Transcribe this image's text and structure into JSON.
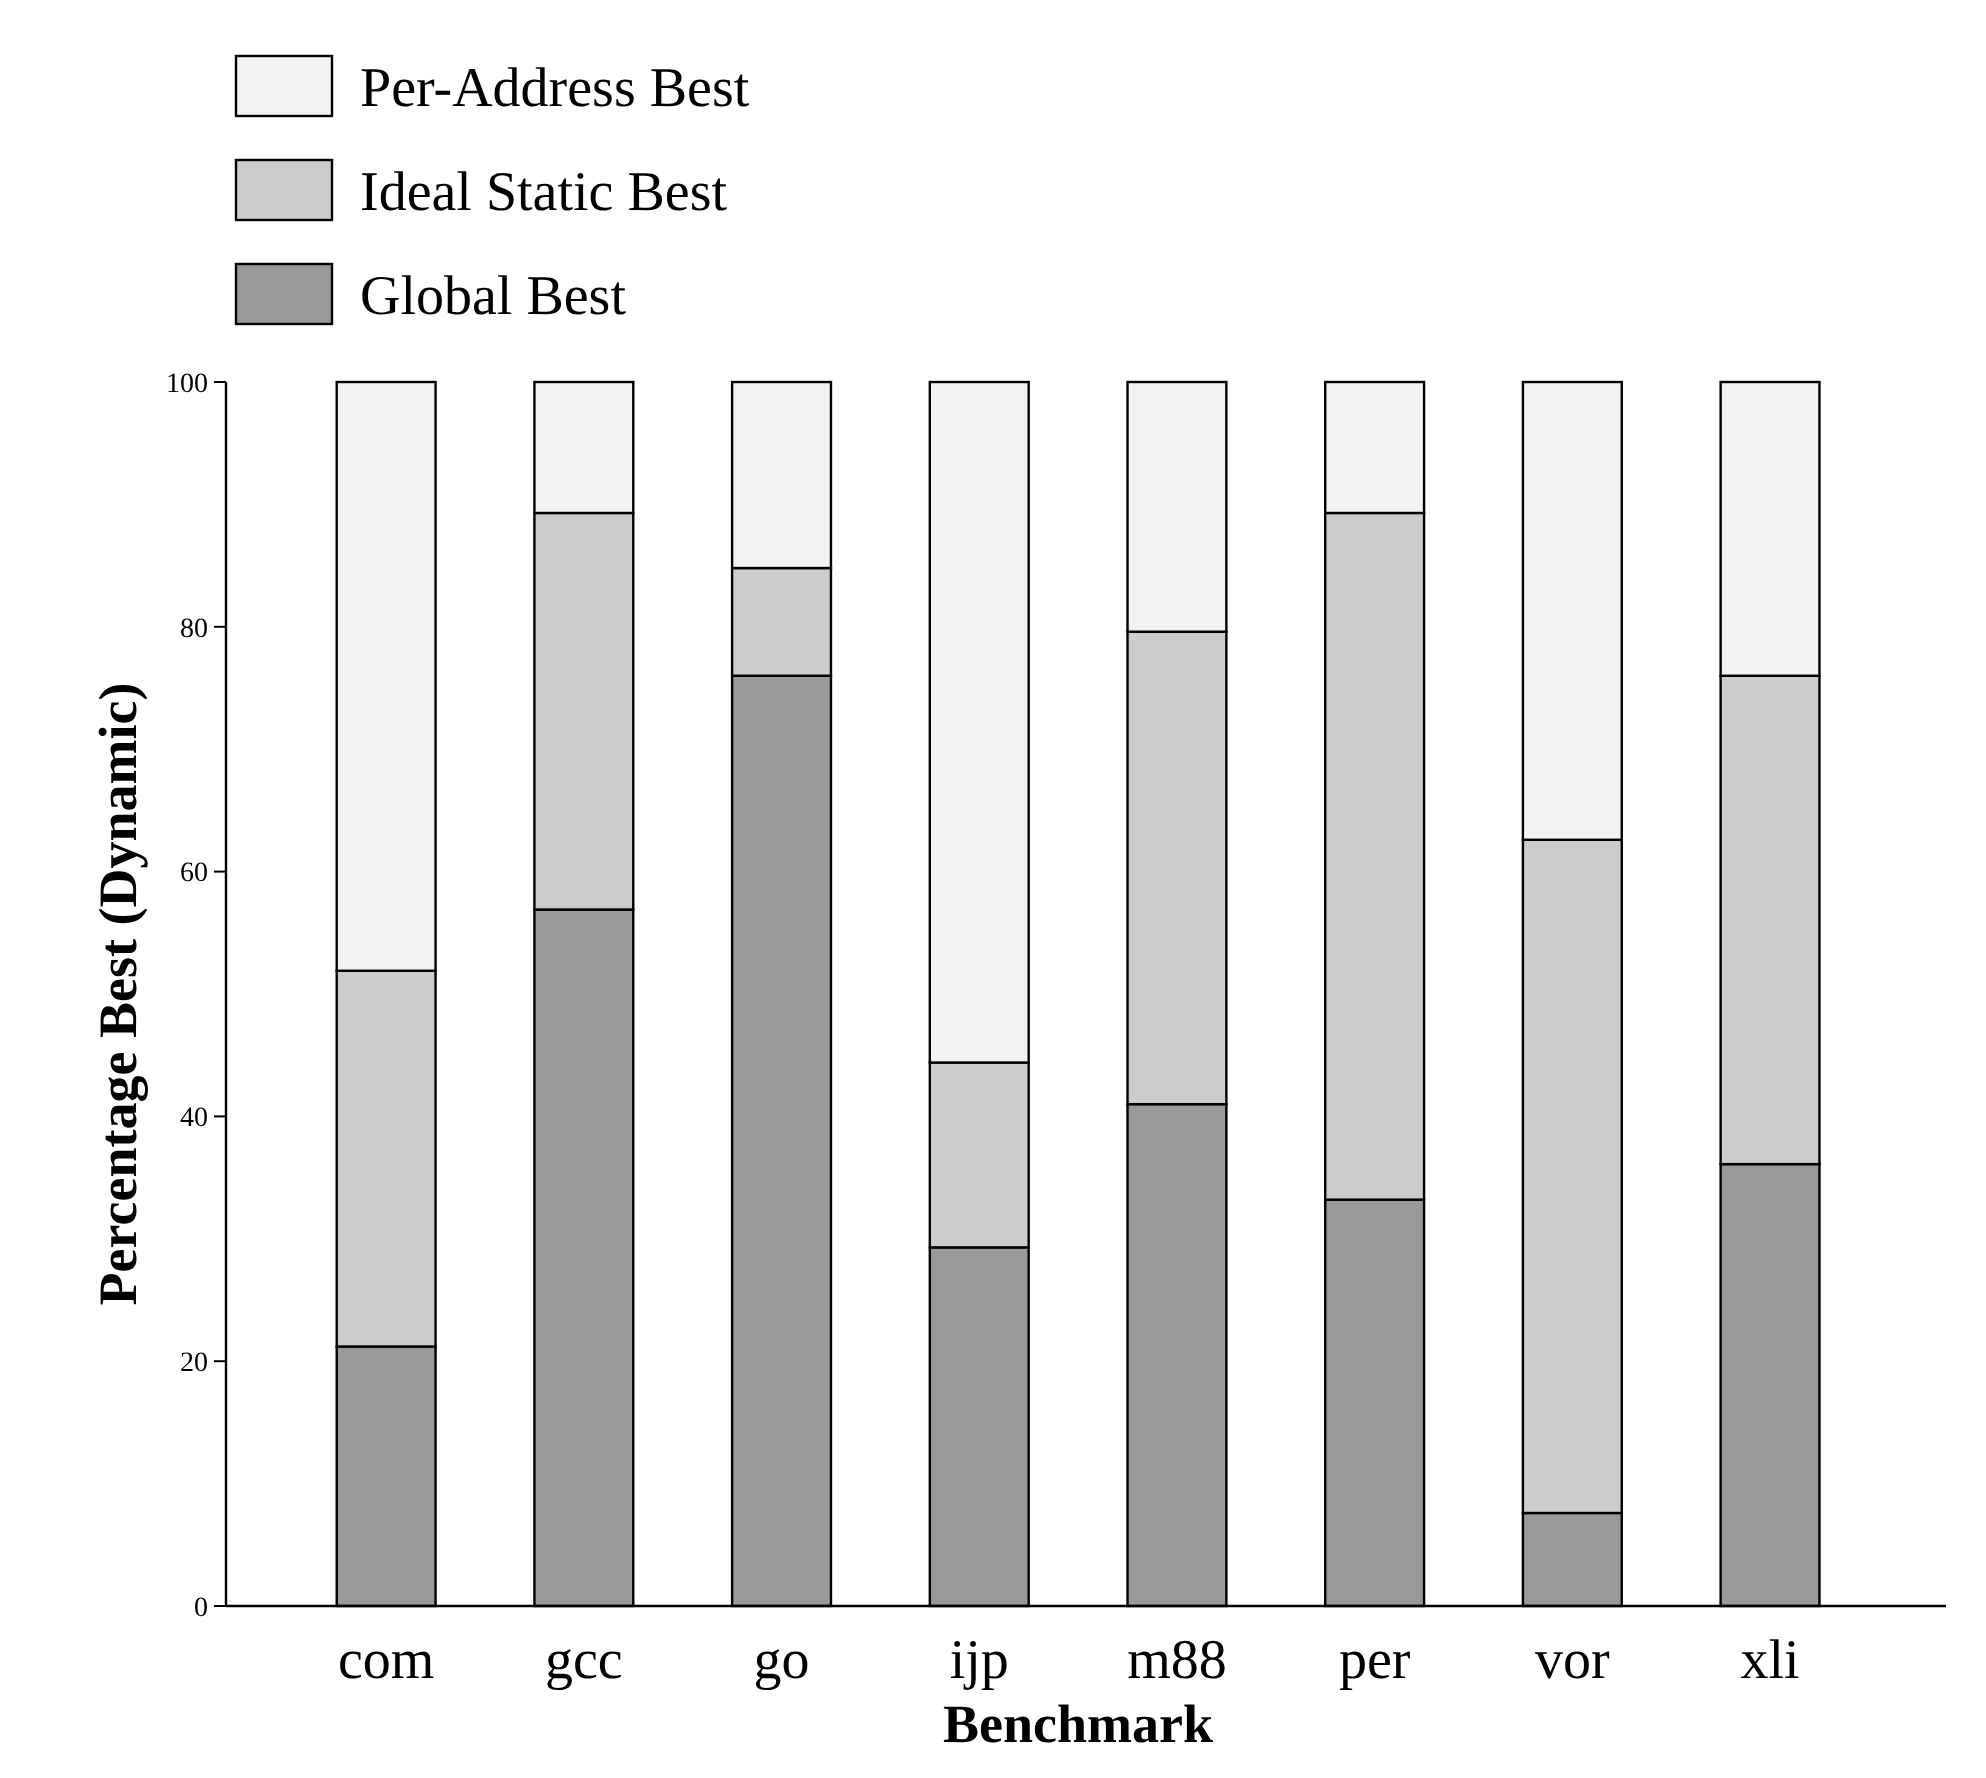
{
  "chart_data": {
    "type": "bar",
    "stacked": true,
    "xlabel": "Benchmark",
    "ylabel": "Percentage Best (Dynamic)",
    "categories": [
      "com",
      "gcc",
      "go",
      "ijp",
      "m88",
      "per",
      "vor",
      "xli"
    ],
    "series": [
      {
        "name": "Global Best",
        "color": "#999999",
        "values": [
          21.2,
          56.9,
          76.0,
          29.3,
          41.0,
          33.2,
          7.6,
          36.1
        ]
      },
      {
        "name": "Ideal Static Best",
        "color": "#cccccc",
        "values": [
          30.7,
          32.4,
          8.8,
          15.1,
          38.6,
          56.1,
          55.0,
          39.9
        ]
      },
      {
        "name": "Per-Address Best",
        "color": "#f2f2f2",
        "values": [
          48.1,
          10.7,
          15.2,
          55.6,
          20.4,
          10.7,
          37.4,
          24.0
        ]
      }
    ],
    "ylim": [
      0,
      100
    ],
    "yticks": [
      0,
      20,
      40,
      60,
      80,
      100
    ],
    "grid": false,
    "legend": "top left"
  }
}
